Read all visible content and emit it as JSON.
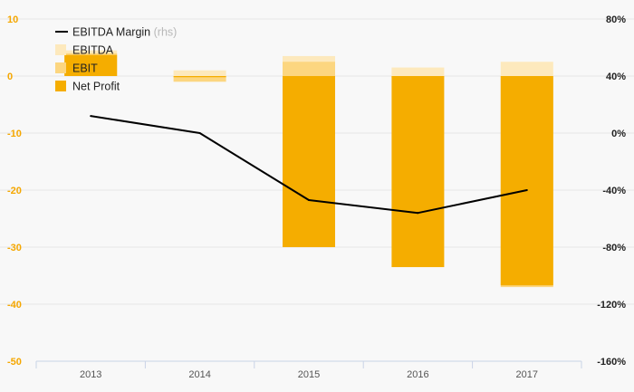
{
  "chart_data": {
    "type": "bar",
    "categories": [
      "2013",
      "2014",
      "2015",
      "2016",
      "2017"
    ],
    "series": [
      {
        "name": "EBITDA",
        "axis": "left",
        "values": [
          4.5,
          1.0,
          3.5,
          1.5,
          2.5
        ]
      },
      {
        "name": "EBIT",
        "axis": "left",
        "values": [
          4.0,
          -1.0,
          2.5,
          -0.3,
          -37.0
        ]
      },
      {
        "name": "Net Profit",
        "axis": "left",
        "values": [
          3.7,
          -0.2,
          -30.0,
          -33.5,
          -36.7
        ]
      },
      {
        "name": "EBITDA Margin",
        "axis": "right",
        "type": "line",
        "values": [
          12,
          0,
          -47,
          -56,
          -40
        ]
      }
    ],
    "legend": [
      {
        "label": "EBITDA Margin",
        "suffix": "(rhs)",
        "marker": "line"
      },
      {
        "label": "EBITDA",
        "marker": "box"
      },
      {
        "label": "EBIT",
        "marker": "box"
      },
      {
        "label": "Net Profit",
        "marker": "box"
      }
    ],
    "left_axis": {
      "ticks": [
        "10",
        "0",
        "-10",
        "-20",
        "-30",
        "-40",
        "-50"
      ],
      "range": [
        -50,
        10
      ]
    },
    "right_axis": {
      "ticks": [
        "80%",
        "40%",
        "0%",
        "-40%",
        "-80%",
        "-120%",
        "-160%"
      ],
      "range": [
        -160,
        80
      ]
    },
    "legend_position": "top-left",
    "grid": true,
    "colors": {
      "ebitda": "#fde9bd",
      "ebit": "#fcd680",
      "net_profit": "#f5ad00",
      "line": "#000000",
      "left_tick": "#f5a700",
      "grid": "#e6e6e6",
      "axis": "#c9d3e6"
    }
  }
}
